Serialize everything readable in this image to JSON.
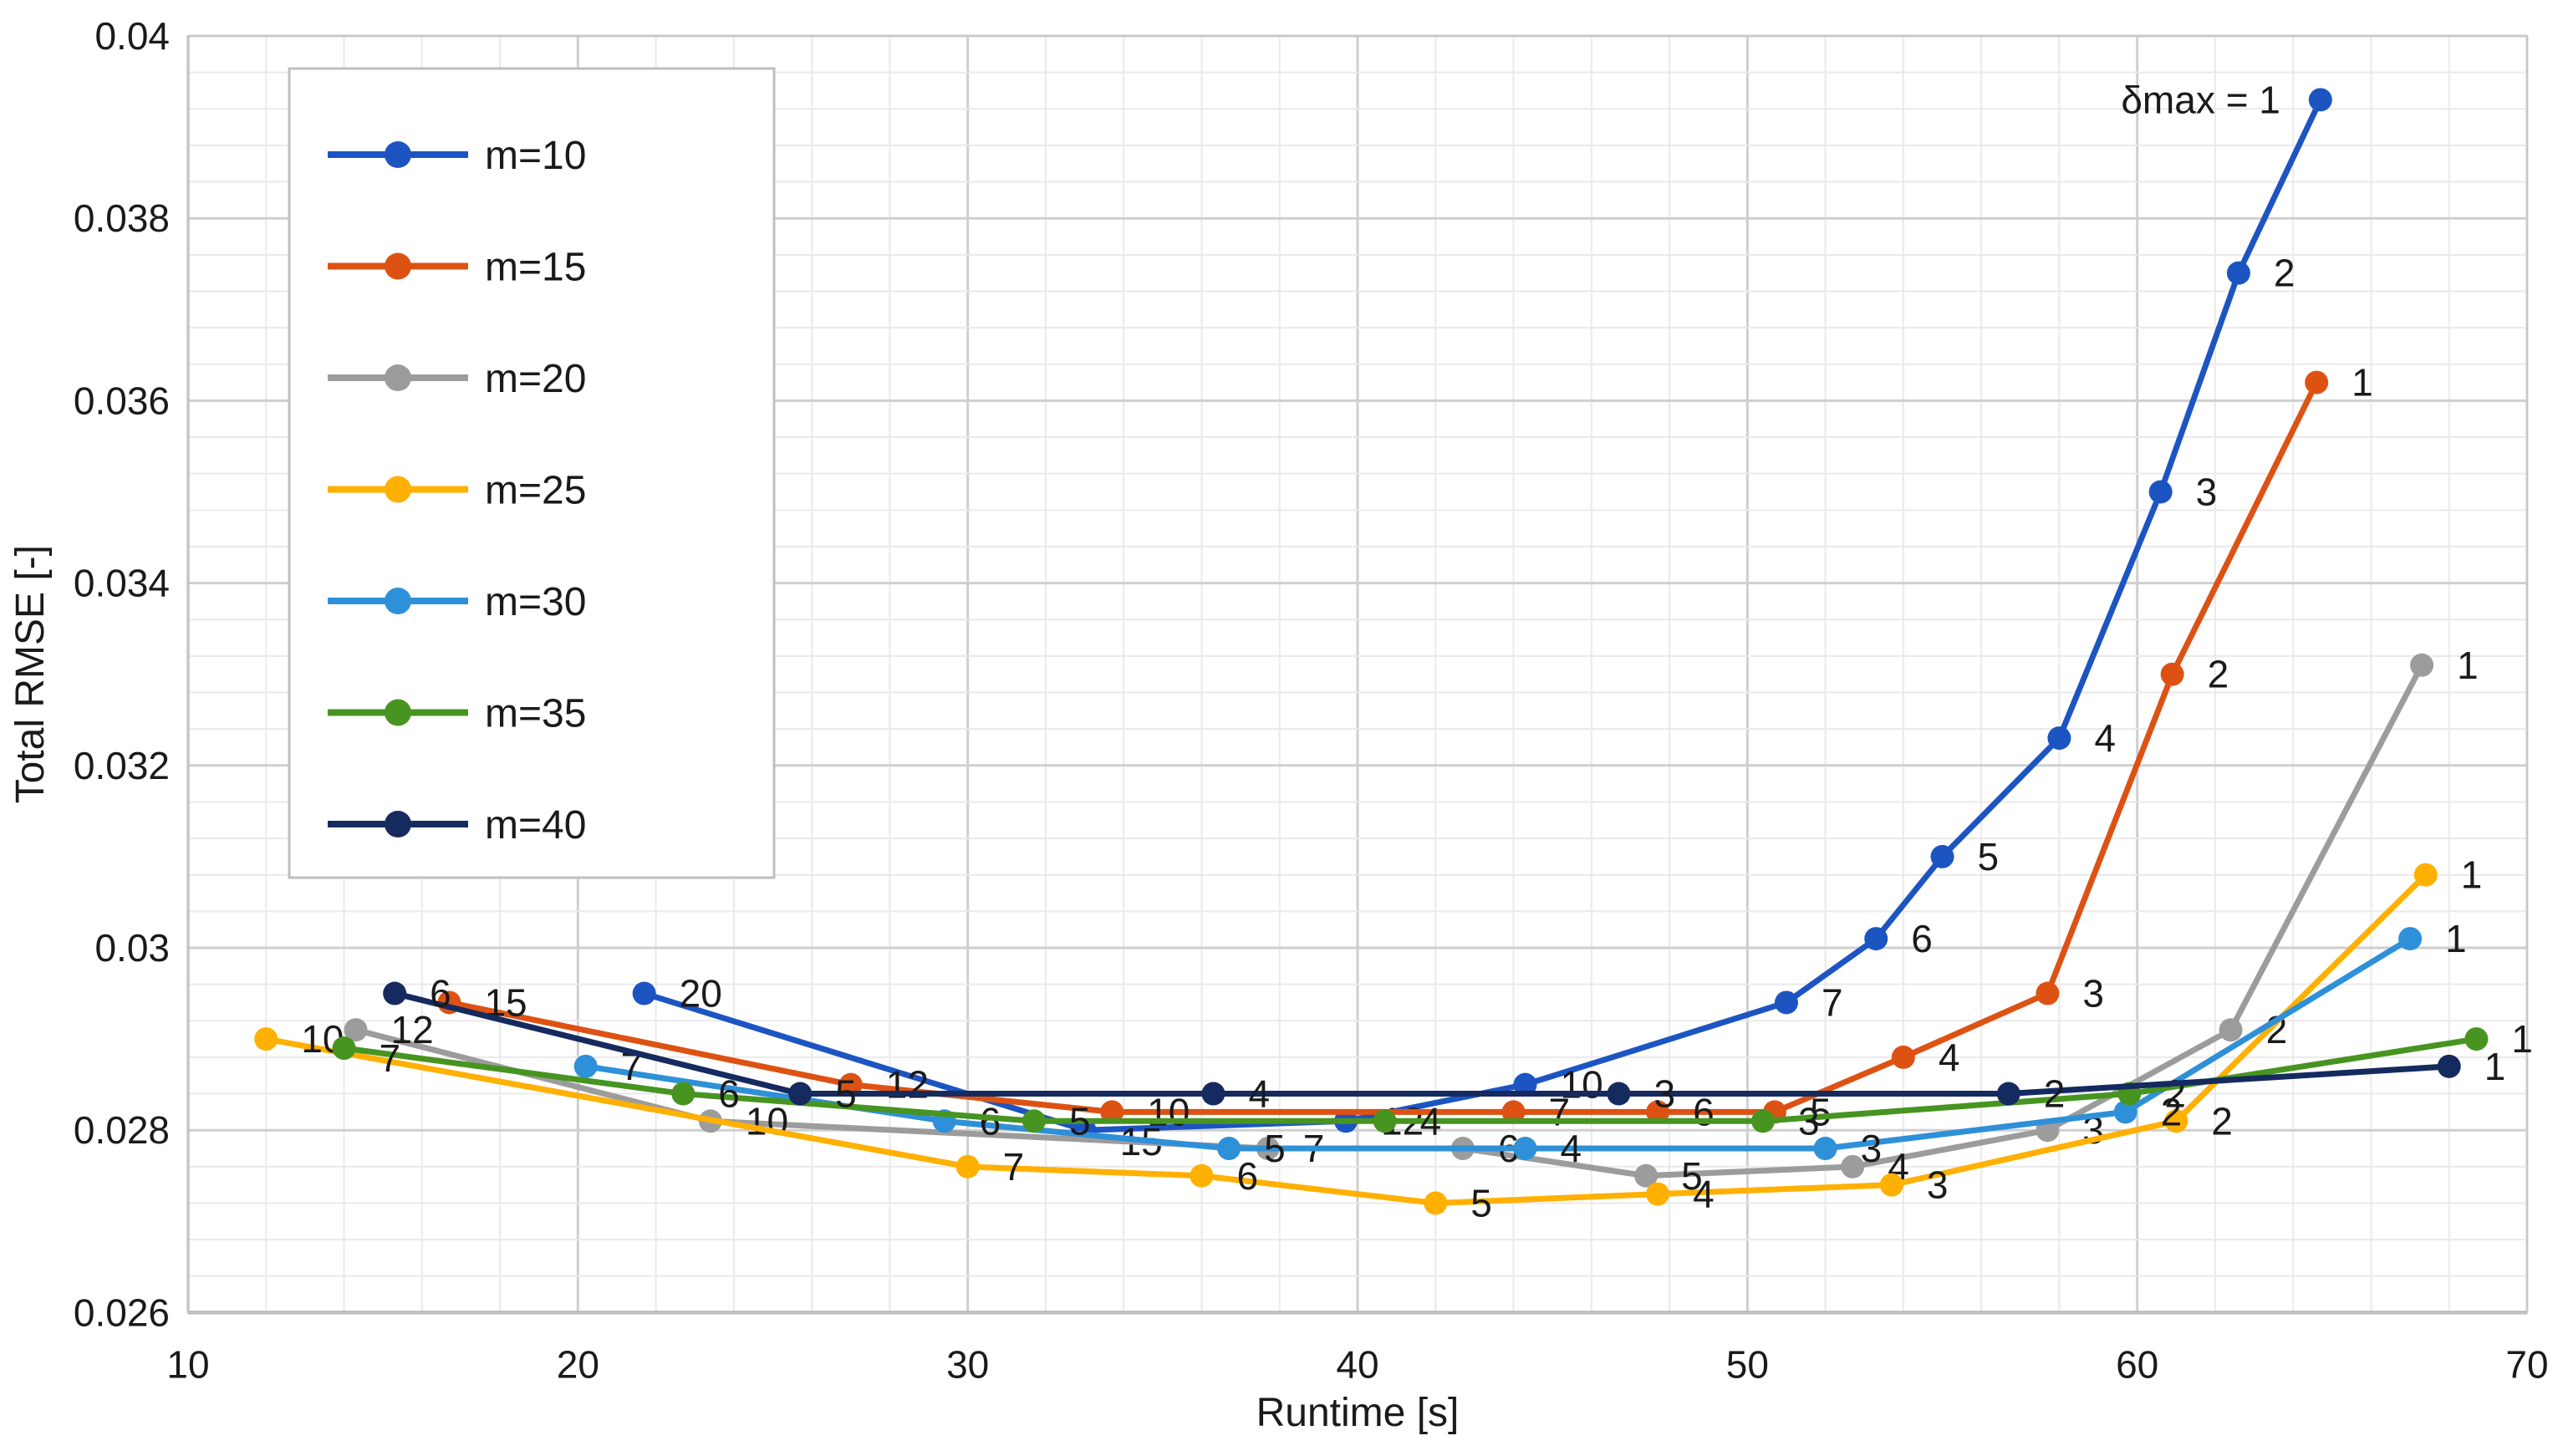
{
  "chart_data": {
    "type": "line",
    "title": "",
    "xlabel": "Runtime [s]",
    "ylabel": "Total RMSE [-]",
    "xlim": [
      10,
      70
    ],
    "ylim": [
      0.026,
      0.04
    ],
    "x_ticks": [
      {
        "v": 10,
        "label": "10"
      },
      {
        "v": 20,
        "label": "20"
      },
      {
        "v": 30,
        "label": "30"
      },
      {
        "v": 40,
        "label": "40"
      },
      {
        "v": 50,
        "label": "50"
      },
      {
        "v": 60,
        "label": "60"
      },
      {
        "v": 70,
        "label": "70"
      }
    ],
    "y_ticks": [
      {
        "v": 0.026,
        "label": "0.026"
      },
      {
        "v": 0.028,
        "label": "0.028"
      },
      {
        "v": 0.03,
        "label": "0.03"
      },
      {
        "v": 0.032,
        "label": "0.032"
      },
      {
        "v": 0.034,
        "label": "0.034"
      },
      {
        "v": 0.036,
        "label": "0.036"
      },
      {
        "v": 0.038,
        "label": "0.038"
      },
      {
        "v": 0.04,
        "label": "0.04"
      }
    ],
    "x_minor_step": 2,
    "y_minor_step": 0.0004,
    "grid": true,
    "legend_position": "top-left-inside",
    "point_labels_meaning": "delta-max value at each point",
    "annotation": "δmax = 1",
    "series": [
      {
        "name": "m=10",
        "color": "#1C55C2",
        "points": [
          {
            "d": 20,
            "x": 21.7,
            "y": 0.0295
          },
          {
            "d": 15,
            "x": 33.0,
            "y": 0.028,
            "dy": 30
          },
          {
            "d": 12,
            "x": 39.7,
            "y": 0.0281
          },
          {
            "d": 10,
            "x": 44.3,
            "y": 0.0285
          },
          {
            "d": 7,
            "x": 51.0,
            "y": 0.0294
          },
          {
            "d": 6,
            "x": 53.3,
            "y": 0.0301
          },
          {
            "d": 5,
            "x": 55.0,
            "y": 0.031
          },
          {
            "d": 4,
            "x": 58.0,
            "y": 0.0323
          },
          {
            "d": 3,
            "x": 60.6,
            "y": 0.035
          },
          {
            "d": 2,
            "x": 62.6,
            "y": 0.0374
          },
          {
            "d": 1,
            "x": 64.7,
            "y": 0.0393,
            "label": "δmax = 1",
            "anchor": "end",
            "dx": -48
          }
        ]
      },
      {
        "name": "m=15",
        "color": "#DD5213",
        "points": [
          {
            "d": 15,
            "x": 16.7,
            "y": 0.0294
          },
          {
            "d": 12,
            "x": 27.0,
            "y": 0.0285
          },
          {
            "d": 10,
            "x": 33.7,
            "y": 0.0282
          },
          {
            "d": 7,
            "x": 44.0,
            "y": 0.0282
          },
          {
            "d": 6,
            "x": 47.7,
            "y": 0.0282
          },
          {
            "d": 5,
            "x": 50.7,
            "y": 0.0282
          },
          {
            "d": 4,
            "x": 54.0,
            "y": 0.0288
          },
          {
            "d": 3,
            "x": 57.7,
            "y": 0.0295
          },
          {
            "d": 2,
            "x": 60.9,
            "y": 0.033
          },
          {
            "d": 1,
            "x": 64.6,
            "y": 0.0362
          }
        ]
      },
      {
        "name": "m=20",
        "color": "#9C9C9C",
        "points": [
          {
            "d": 12,
            "x": 14.3,
            "y": 0.0291
          },
          {
            "d": 10,
            "x": 23.4,
            "y": 0.0281
          },
          {
            "d": 7,
            "x": 37.7,
            "y": 0.0278
          },
          {
            "d": 6,
            "x": 42.7,
            "y": 0.0278
          },
          {
            "d": 5,
            "x": 47.4,
            "y": 0.0275
          },
          {
            "d": 4,
            "x": 52.7,
            "y": 0.0276
          },
          {
            "d": 3,
            "x": 57.7,
            "y": 0.028
          },
          {
            "d": 2,
            "x": 62.4,
            "y": 0.0291
          },
          {
            "d": 1,
            "x": 67.3,
            "y": 0.0331
          }
        ]
      },
      {
        "name": "m=25",
        "color": "#FFB000",
        "points": [
          {
            "d": 10,
            "x": 12.0,
            "y": 0.029
          },
          {
            "d": 7,
            "x": 30.0,
            "y": 0.0276
          },
          {
            "d": 6,
            "x": 36.0,
            "y": 0.0275
          },
          {
            "d": 5,
            "x": 42.0,
            "y": 0.0272
          },
          {
            "d": 4,
            "x": 47.7,
            "y": 0.0273
          },
          {
            "d": 3,
            "x": 53.7,
            "y": 0.0274
          },
          {
            "d": 2,
            "x": 61.0,
            "y": 0.0281
          },
          {
            "d": 1,
            "x": 67.4,
            "y": 0.0308
          }
        ]
      },
      {
        "name": "m=30",
        "color": "#2E90D8",
        "points": [
          {
            "d": 7,
            "x": 20.2,
            "y": 0.0287
          },
          {
            "d": 6,
            "x": 29.4,
            "y": 0.0281
          },
          {
            "d": 5,
            "x": 36.7,
            "y": 0.0278
          },
          {
            "d": 4,
            "x": 44.3,
            "y": 0.0278
          },
          {
            "d": 3,
            "x": 52.0,
            "y": 0.0278
          },
          {
            "d": 2,
            "x": 59.7,
            "y": 0.0282
          },
          {
            "d": 1,
            "x": 67.0,
            "y": 0.0301
          }
        ]
      },
      {
        "name": "m=35",
        "color": "#479421",
        "points": [
          {
            "d": 7,
            "x": 14.0,
            "y": 0.0289,
            "dy": 28
          },
          {
            "d": 6,
            "x": 22.7,
            "y": 0.0284
          },
          {
            "d": 5,
            "x": 31.7,
            "y": 0.0281
          },
          {
            "d": 4,
            "x": 40.7,
            "y": 0.0281
          },
          {
            "d": 3,
            "x": 50.4,
            "y": 0.0281
          },
          {
            "d": 2,
            "x": 59.8,
            "y": 0.0284
          },
          {
            "d": 1,
            "x": 68.7,
            "y": 0.029
          }
        ]
      },
      {
        "name": "m=40",
        "color": "#152A5F",
        "points": [
          {
            "d": 6,
            "x": 15.3,
            "y": 0.0295
          },
          {
            "d": 5,
            "x": 25.7,
            "y": 0.0284
          },
          {
            "d": 4,
            "x": 36.3,
            "y": 0.0284
          },
          {
            "d": 3,
            "x": 46.7,
            "y": 0.0284
          },
          {
            "d": 2,
            "x": 56.7,
            "y": 0.0284
          },
          {
            "d": 1,
            "x": 68.0,
            "y": 0.0287
          }
        ]
      }
    ]
  },
  "colors": {
    "background": "#FFFFFF",
    "grid_minor": "#EAEAEA",
    "grid_major": "#CFCFCF",
    "plot_border": "#C8C8C8",
    "axis_line": "#A6A6A6",
    "text": "#1A1A1A",
    "legend_border": "#BFBFBF",
    "legend_background": "#FFFFFF"
  }
}
